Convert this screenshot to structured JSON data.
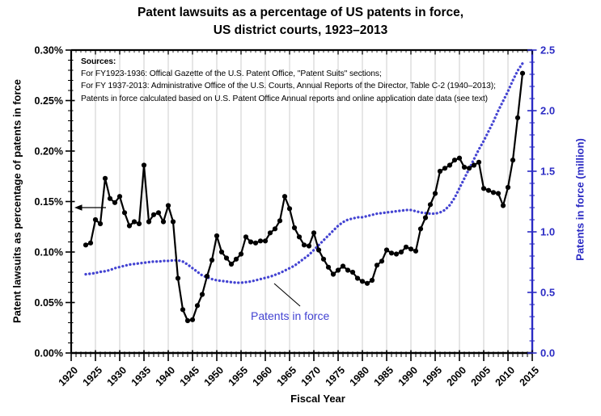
{
  "title": {
    "line1": "Patent lawsuits as a percentage of US patents in force,",
    "line2": "US district courts, 1923–2013"
  },
  "sources": {
    "heading": "Sources:",
    "lines": [
      "For FY1923-1936: Offical Gazette of the U.S. Patent Office, \"Patent Suits\" sections;",
      "For FY 1937-2013: Administrative Office of the U.S. Courts, Annual Reports of the Director, Table C-2 (1940–2013);",
      "Patents in force calculated based on U.S. Patent Office Annual reports and online application date data (see text)"
    ]
  },
  "annotations": {
    "patents_in_force_label": "Patents in force",
    "left_axis_arrow": "arrow pointing to left axis at 0.14%"
  },
  "axes": {
    "x": {
      "label": "Fiscal Year",
      "ticks": [
        "1920",
        "1925",
        "1930",
        "1935",
        "1940",
        "1945",
        "1950",
        "1955",
        "1960",
        "1965",
        "1970",
        "1975",
        "1980",
        "1985",
        "1990",
        "1995",
        "2000",
        "2005",
        "2010",
        "2015"
      ],
      "min": 1920,
      "max": 2015,
      "major_step": 5,
      "minor_step": 1
    },
    "y_left": {
      "label": "Patent lawsuits as percentage of patents in force",
      "ticks": [
        "0.00%",
        "0.05%",
        "0.10%",
        "0.15%",
        "0.20%",
        "0.25%",
        "0.30%"
      ],
      "min": 0,
      "max": 0.3,
      "units": "percent"
    },
    "y_right": {
      "label": "Patents in force (million)",
      "ticks": [
        "0.0",
        "0.5",
        "1.0",
        "1.5",
        "2.0",
        "2.5"
      ],
      "min": 0,
      "max": 2.5,
      "units": "million patents"
    }
  },
  "colors": {
    "black_series": "#000000",
    "blue_line": "#4444d2",
    "blue_text": "#2b2bc4",
    "annotation_blue": "#4343d2",
    "gridline": "#d9d9d9",
    "background": "#ffffff"
  },
  "chart_data": {
    "type": "line",
    "title": "Patent lawsuits as a percentage of US patents in force, US district courts, 1923–2013",
    "xlabel": "Fiscal Year",
    "grid": "vertical-only",
    "legend_position": "in-plot annotations",
    "x_range": [
      1920,
      2015
    ],
    "y_left_range_percent": [
      0,
      0.3
    ],
    "y_right_range_million": [
      0,
      2.5
    ],
    "x": [
      1923,
      1924,
      1925,
      1926,
      1927,
      1928,
      1929,
      1930,
      1931,
      1932,
      1933,
      1934,
      1935,
      1936,
      1937,
      1938,
      1939,
      1940,
      1941,
      1942,
      1943,
      1944,
      1945,
      1946,
      1947,
      1948,
      1949,
      1950,
      1951,
      1952,
      1953,
      1954,
      1955,
      1956,
      1957,
      1958,
      1959,
      1960,
      1961,
      1962,
      1963,
      1964,
      1965,
      1966,
      1967,
      1968,
      1969,
      1970,
      1971,
      1972,
      1973,
      1974,
      1975,
      1976,
      1977,
      1978,
      1979,
      1980,
      1981,
      1982,
      1983,
      1984,
      1985,
      1986,
      1987,
      1988,
      1989,
      1990,
      1991,
      1992,
      1993,
      1994,
      1995,
      1996,
      1997,
      1998,
      1999,
      2000,
      2001,
      2002,
      2003,
      2004,
      2005,
      2006,
      2007,
      2008,
      2009,
      2010,
      2011,
      2012,
      2013
    ],
    "series": [
      {
        "name": "Patent lawsuits as percentage of patents in force",
        "axis": "left",
        "units": "percent",
        "style": "solid line with round markers",
        "color": "#000000",
        "values": [
          0.107,
          0.109,
          0.132,
          0.128,
          0.173,
          0.153,
          0.149,
          0.155,
          0.139,
          0.126,
          0.13,
          0.128,
          0.186,
          0.13,
          0.137,
          0.139,
          0.13,
          0.146,
          0.13,
          0.074,
          0.043,
          0.032,
          0.033,
          0.047,
          0.058,
          0.076,
          0.092,
          0.116,
          0.1,
          0.094,
          0.088,
          0.093,
          0.098,
          0.115,
          0.11,
          0.109,
          0.111,
          0.111,
          0.119,
          0.123,
          0.131,
          0.155,
          0.143,
          0.124,
          0.115,
          0.107,
          0.106,
          0.119,
          0.102,
          0.093,
          0.085,
          0.078,
          0.082,
          0.086,
          0.082,
          0.08,
          0.074,
          0.071,
          0.069,
          0.072,
          0.087,
          0.091,
          0.102,
          0.099,
          0.098,
          0.1,
          0.105,
          0.103,
          0.101,
          0.123,
          0.134,
          0.147,
          0.158,
          0.18,
          0.183,
          0.186,
          0.191,
          0.193,
          0.184,
          0.183,
          0.186,
          0.189,
          0.163,
          0.161,
          0.159,
          0.158,
          0.146,
          0.164,
          0.191,
          0.233,
          0.277
        ]
      },
      {
        "name": "Patents in force",
        "axis": "right",
        "units": "million",
        "style": "dotted line",
        "color": "#4444d2",
        "values": [
          0.65,
          0.655,
          0.66,
          0.67,
          0.675,
          0.685,
          0.7,
          0.71,
          0.72,
          0.73,
          0.735,
          0.74,
          0.745,
          0.75,
          0.755,
          0.755,
          0.76,
          0.76,
          0.765,
          0.765,
          0.755,
          0.73,
          0.7,
          0.67,
          0.64,
          0.625,
          0.61,
          0.6,
          0.595,
          0.59,
          0.585,
          0.58,
          0.58,
          0.585,
          0.59,
          0.6,
          0.61,
          0.62,
          0.63,
          0.645,
          0.66,
          0.68,
          0.7,
          0.72,
          0.75,
          0.78,
          0.81,
          0.85,
          0.89,
          0.93,
          0.97,
          1.01,
          1.05,
          1.08,
          1.1,
          1.11,
          1.12,
          1.12,
          1.13,
          1.14,
          1.15,
          1.155,
          1.16,
          1.165,
          1.17,
          1.175,
          1.18,
          1.18,
          1.17,
          1.16,
          1.155,
          1.15,
          1.15,
          1.16,
          1.18,
          1.22,
          1.28,
          1.36,
          1.44,
          1.52,
          1.6,
          1.68,
          1.75,
          1.83,
          1.91,
          2.0,
          2.08,
          2.16,
          2.25,
          2.33,
          2.39
        ]
      }
    ]
  }
}
